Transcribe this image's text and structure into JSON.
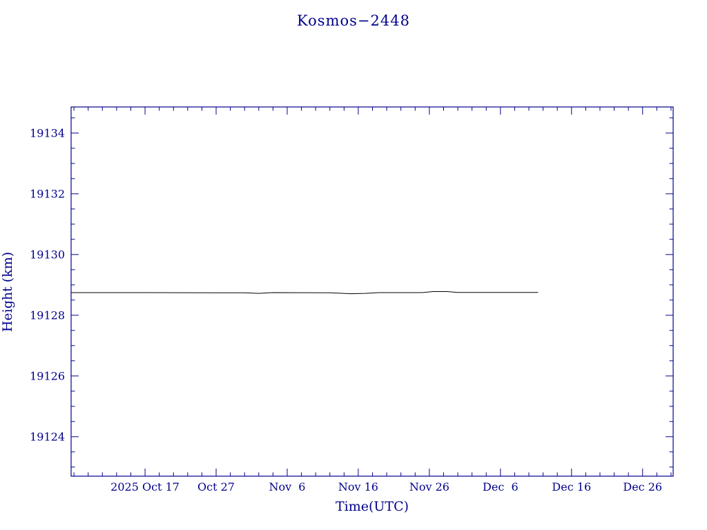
{
  "chart_data": {
    "type": "line",
    "title": "Kosmos−2448",
    "xlabel": "Time(UTC)",
    "ylabel": "Height (km)",
    "axis_color": "#00008b",
    "line_color": "#000000",
    "background": "#ffffff",
    "grid": false,
    "legend": "none",
    "xlim_days_from_oct17": [
      -10.4,
      74.3
    ],
    "ylim": [
      19122.7,
      19134.86
    ],
    "x_ticks": [
      {
        "d": 0,
        "label": "2025 Oct 17"
      },
      {
        "d": 10,
        "label": "Oct 27"
      },
      {
        "d": 20,
        "label": "Nov  6"
      },
      {
        "d": 30,
        "label": "Nov 16"
      },
      {
        "d": 40,
        "label": "Nov 26"
      },
      {
        "d": 50,
        "label": "Dec  6"
      },
      {
        "d": 60,
        "label": "Dec 16"
      },
      {
        "d": 70,
        "label": "Dec 26"
      }
    ],
    "x_minor_step_days": 2,
    "y_ticks": [
      19124,
      19126,
      19128,
      19130,
      19132,
      19134
    ],
    "y_minor_step": 0.5,
    "series": [
      {
        "name": "Kosmos-2448 orbital height",
        "points": [
          [
            -10.4,
            19128.745
          ],
          [
            0,
            19128.745
          ],
          [
            10,
            19128.74
          ],
          [
            14,
            19128.74
          ],
          [
            16,
            19128.72
          ],
          [
            18,
            19128.745
          ],
          [
            26,
            19128.74
          ],
          [
            29,
            19128.71
          ],
          [
            31,
            19128.72
          ],
          [
            33,
            19128.745
          ],
          [
            39,
            19128.745
          ],
          [
            40.5,
            19128.78
          ],
          [
            42.5,
            19128.78
          ],
          [
            44,
            19128.75
          ],
          [
            55.3,
            19128.75
          ]
        ],
        "approx_mean_height_km": 19128.75,
        "x_start_label": "~2025 Oct 7",
        "x_end_label": "~2025 Dec 11"
      }
    ]
  }
}
